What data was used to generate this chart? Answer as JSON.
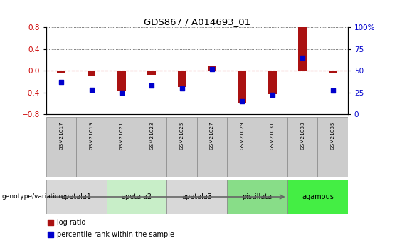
{
  "title": "GDS867 / A014693_01",
  "samples": [
    "GSM21017",
    "GSM21019",
    "GSM21021",
    "GSM21023",
    "GSM21025",
    "GSM21027",
    "GSM21029",
    "GSM21031",
    "GSM21033",
    "GSM21035"
  ],
  "log_ratio": [
    -0.04,
    -0.1,
    -0.38,
    -0.07,
    -0.3,
    0.1,
    -0.6,
    -0.43,
    0.8,
    -0.04
  ],
  "percentile_rank": [
    37,
    28,
    25,
    33,
    30,
    52,
    15,
    22,
    65,
    27
  ],
  "ylim_left": [
    -0.8,
    0.8
  ],
  "yticks_left": [
    -0.8,
    -0.4,
    0.0,
    0.4,
    0.8
  ],
  "ylim_right": [
    0,
    100
  ],
  "yticks_right": [
    0,
    25,
    50,
    75,
    100
  ],
  "bar_color": "#aa1111",
  "dot_color": "#0000cc",
  "zero_line_color": "#cc0000",
  "dot_line_color": "#cc0000",
  "grid_color": "#000000",
  "groups": [
    {
      "label": "apetala1",
      "samples": [
        0,
        1
      ],
      "color": "#d8d8d8"
    },
    {
      "label": "apetala2",
      "samples": [
        2,
        3
      ],
      "color": "#c8eec8"
    },
    {
      "label": "apetala3",
      "samples": [
        4,
        5
      ],
      "color": "#d8d8d8"
    },
    {
      "label": "pistillata",
      "samples": [
        6,
        7
      ],
      "color": "#88dd88"
    },
    {
      "label": "agamous",
      "samples": [
        8,
        9
      ],
      "color": "#44ee44"
    }
  ],
  "sample_box_color": "#cccccc",
  "legend_bar_label": "log ratio",
  "legend_dot_label": "percentile rank within the sample",
  "genotype_label": "genotype/variation",
  "tick_label_color_left": "#cc0000",
  "tick_label_color_right": "#0000cc"
}
